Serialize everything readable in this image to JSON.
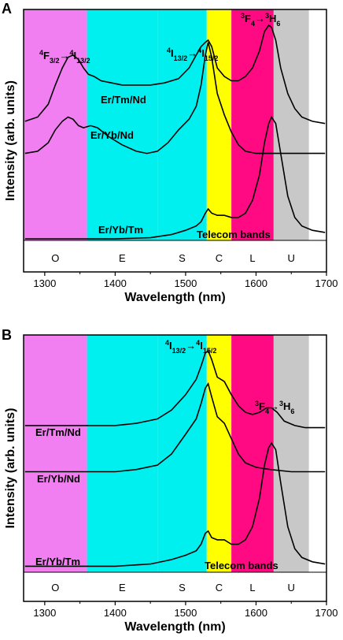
{
  "chart_data": [
    {
      "panel_label": "A",
      "type": "line",
      "xlabel": "Wavelength (nm)",
      "ylabel": "Intensity (arb. units)",
      "xlim": [
        1270,
        1700
      ],
      "xticks": [
        1300,
        1400,
        1500,
        1600,
        1700
      ],
      "grid": false,
      "bands": [
        {
          "name": "O",
          "range": [
            1260,
            1360
          ],
          "color": "#f27ff2"
        },
        {
          "name": "E",
          "range": [
            1360,
            1460
          ],
          "color": "#00f0f0"
        },
        {
          "name": "S",
          "range": [
            1460,
            1530
          ],
          "color": "#00f0f0"
        },
        {
          "name": "C",
          "range": [
            1530,
            1565
          ],
          "color": "#ffff00"
        },
        {
          "name": "L",
          "range": [
            1565,
            1625
          ],
          "color": "#ff0a82"
        },
        {
          "name": "U",
          "range": [
            1625,
            1675
          ],
          "color": "#c8c8c8"
        }
      ],
      "band_caption": "Telecom bands",
      "annotations": [
        {
          "text": [
            "4",
            "F",
            "3/2",
            "→",
            "4",
            "I",
            "13/2"
          ]
        },
        {
          "text": [
            "4",
            "I",
            "13/2",
            "→",
            "4",
            "I",
            "15/2"
          ]
        },
        {
          "text": [
            "3",
            "F",
            "4",
            "→",
            "3",
            "H",
            "6"
          ]
        }
      ],
      "series": [
        {
          "name": "Er/Tm/Nd",
          "x": [
            1272,
            1290,
            1305,
            1315,
            1325,
            1333,
            1340,
            1348,
            1355,
            1362,
            1370,
            1380,
            1395,
            1410,
            1430,
            1450,
            1470,
            1490,
            1505,
            1515,
            1522,
            1528,
            1532,
            1537,
            1545,
            1555,
            1565,
            1575,
            1585,
            1595,
            1605,
            1612,
            1618,
            1622,
            1628,
            1635,
            1645,
            1655,
            1665,
            1680,
            1698
          ],
          "y": [
            0.55,
            0.57,
            0.63,
            0.72,
            0.8,
            0.85,
            0.86,
            0.84,
            0.8,
            0.77,
            0.76,
            0.74,
            0.73,
            0.72,
            0.72,
            0.72,
            0.73,
            0.75,
            0.8,
            0.86,
            0.9,
            0.92,
            0.93,
            0.9,
            0.8,
            0.76,
            0.74,
            0.74,
            0.76,
            0.8,
            0.88,
            0.97,
            1.0,
            0.99,
            0.93,
            0.8,
            0.68,
            0.61,
            0.57,
            0.55,
            0.54
          ]
        },
        {
          "name": "Er/Yb/Nd",
          "x": [
            1272,
            1290,
            1305,
            1315,
            1325,
            1333,
            1340,
            1348,
            1355,
            1365,
            1375,
            1390,
            1410,
            1430,
            1445,
            1460,
            1475,
            1490,
            1505,
            1515,
            1522,
            1528,
            1532,
            1537,
            1545,
            1555,
            1565,
            1575,
            1585,
            1600,
            1620,
            1650,
            1698
          ],
          "y": [
            0.4,
            0.41,
            0.45,
            0.51,
            0.55,
            0.57,
            0.56,
            0.53,
            0.52,
            0.53,
            0.52,
            0.48,
            0.44,
            0.41,
            0.4,
            0.41,
            0.45,
            0.51,
            0.56,
            0.62,
            0.72,
            0.86,
            0.92,
            0.85,
            0.68,
            0.58,
            0.5,
            0.44,
            0.41,
            0.4,
            0.4,
            0.4,
            0.4
          ]
        },
        {
          "name": "Er/Yb/Tm",
          "x": [
            1272,
            1300,
            1400,
            1450,
            1480,
            1500,
            1515,
            1522,
            1528,
            1532,
            1537,
            1545,
            1555,
            1565,
            1575,
            1585,
            1595,
            1605,
            1612,
            1618,
            1622,
            1628,
            1635,
            1645,
            1655,
            1665,
            1680,
            1698
          ],
          "y": [
            0.0,
            0.0,
            0.0,
            0.005,
            0.02,
            0.04,
            0.06,
            0.08,
            0.12,
            0.14,
            0.12,
            0.11,
            0.11,
            0.1,
            0.1,
            0.12,
            0.18,
            0.3,
            0.45,
            0.54,
            0.57,
            0.54,
            0.4,
            0.2,
            0.1,
            0.06,
            0.04,
            0.03
          ]
        }
      ]
    },
    {
      "panel_label": "B",
      "type": "line",
      "xlabel": "Wavelength (nm)",
      "ylabel": "Intensity (arb. units)",
      "xlim": [
        1270,
        1700
      ],
      "xticks": [
        1300,
        1400,
        1500,
        1600,
        1700
      ],
      "grid": false,
      "bands": [
        {
          "name": "O",
          "range": [
            1260,
            1360
          ],
          "color": "#f27ff2"
        },
        {
          "name": "E",
          "range": [
            1360,
            1460
          ],
          "color": "#00f0f0"
        },
        {
          "name": "S",
          "range": [
            1460,
            1530
          ],
          "color": "#00f0f0"
        },
        {
          "name": "C",
          "range": [
            1530,
            1565
          ],
          "color": "#ffff00"
        },
        {
          "name": "L",
          "range": [
            1565,
            1625
          ],
          "color": "#ff0a82"
        },
        {
          "name": "U",
          "range": [
            1625,
            1675
          ],
          "color": "#c8c8c8"
        }
      ],
      "band_caption": "Telecom bands",
      "annotations": [
        {
          "text": [
            "4",
            "I",
            "13/2",
            "→",
            "4",
            "I",
            "15/2"
          ]
        },
        {
          "text": [
            "3",
            "F",
            "4",
            "→",
            "3",
            "H",
            "6"
          ]
        }
      ],
      "series": [
        {
          "name": "Er/Tm/Nd",
          "x": [
            1272,
            1300,
            1350,
            1400,
            1430,
            1460,
            1480,
            1500,
            1515,
            1522,
            1528,
            1532,
            1537,
            1545,
            1555,
            1565,
            1575,
            1585,
            1595,
            1605,
            1615,
            1622,
            1630,
            1640,
            1655,
            1670,
            1698
          ],
          "y": [
            0.66,
            0.66,
            0.66,
            0.66,
            0.67,
            0.69,
            0.73,
            0.8,
            0.87,
            0.93,
            0.99,
            1.0,
            0.96,
            0.88,
            0.86,
            0.8,
            0.75,
            0.72,
            0.71,
            0.72,
            0.74,
            0.74,
            0.72,
            0.68,
            0.66,
            0.65,
            0.65
          ]
        },
        {
          "name": "Er/Yb/Nd",
          "x": [
            1272,
            1300,
            1350,
            1400,
            1430,
            1460,
            1480,
            1500,
            1515,
            1522,
            1528,
            1532,
            1537,
            1545,
            1555,
            1565,
            1575,
            1585,
            1600,
            1620,
            1650,
            1698
          ],
          "y": [
            0.45,
            0.45,
            0.45,
            0.45,
            0.46,
            0.48,
            0.53,
            0.62,
            0.69,
            0.76,
            0.83,
            0.85,
            0.79,
            0.7,
            0.67,
            0.6,
            0.53,
            0.49,
            0.47,
            0.46,
            0.45,
            0.45
          ]
        },
        {
          "name": "Er/Yb/Tm",
          "x": [
            1272,
            1300,
            1400,
            1450,
            1480,
            1500,
            1515,
            1522,
            1528,
            1532,
            1537,
            1545,
            1555,
            1565,
            1575,
            1585,
            1595,
            1605,
            1612,
            1618,
            1622,
            1628,
            1635,
            1645,
            1655,
            1665,
            1680,
            1698
          ],
          "y": [
            0.02,
            0.02,
            0.02,
            0.03,
            0.05,
            0.07,
            0.09,
            0.12,
            0.17,
            0.18,
            0.15,
            0.14,
            0.14,
            0.12,
            0.12,
            0.14,
            0.2,
            0.33,
            0.48,
            0.56,
            0.58,
            0.55,
            0.4,
            0.2,
            0.1,
            0.06,
            0.04,
            0.03
          ]
        }
      ]
    }
  ]
}
